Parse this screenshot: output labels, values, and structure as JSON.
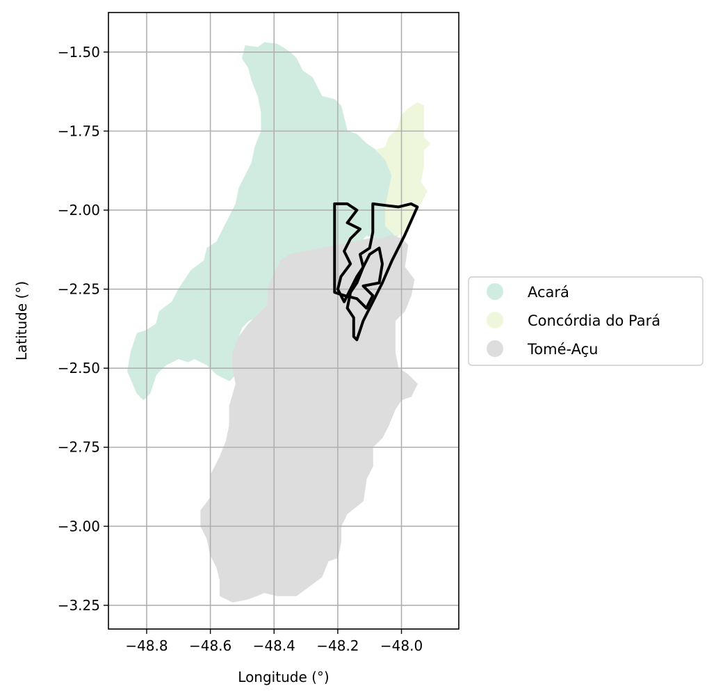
{
  "chart_data": {
    "type": "map",
    "title": "",
    "xlabel": "Longitude (°)",
    "ylabel": "Latitude (°)",
    "xlim": [
      -48.92,
      -47.82
    ],
    "ylim": [
      -3.325,
      -1.375
    ],
    "grid": true,
    "legend_position": "outside-right",
    "x_ticks": [
      {
        "value": -48.8,
        "label": "−48.8"
      },
      {
        "value": -48.6,
        "label": "−48.6"
      },
      {
        "value": -48.4,
        "label": "−48.4"
      },
      {
        "value": -48.2,
        "label": "−48.2"
      },
      {
        "value": -48.0,
        "label": "−48.0"
      }
    ],
    "y_ticks": [
      {
        "value": -1.5,
        "label": "−1.50"
      },
      {
        "value": -1.75,
        "label": "−1.75"
      },
      {
        "value": -2.0,
        "label": "−2.00"
      },
      {
        "value": -2.25,
        "label": "−2.25"
      },
      {
        "value": -2.5,
        "label": "−2.50"
      },
      {
        "value": -2.75,
        "label": "−2.75"
      },
      {
        "value": -3.0,
        "label": "−3.00"
      },
      {
        "value": -3.25,
        "label": "−3.25"
      }
    ],
    "regions": [
      {
        "name": "Acará",
        "color": "#d0ece0",
        "polygon": [
          [
            -48.49,
            -1.48
          ],
          [
            -48.45,
            -1.485
          ],
          [
            -48.43,
            -1.47
          ],
          [
            -48.39,
            -1.475
          ],
          [
            -48.35,
            -1.5
          ],
          [
            -48.33,
            -1.52
          ],
          [
            -48.31,
            -1.56
          ],
          [
            -48.28,
            -1.58
          ],
          [
            -48.27,
            -1.6
          ],
          [
            -48.25,
            -1.64
          ],
          [
            -48.21,
            -1.65
          ],
          [
            -48.19,
            -1.67
          ],
          [
            -48.18,
            -1.71
          ],
          [
            -48.17,
            -1.75
          ],
          [
            -48.14,
            -1.76
          ],
          [
            -48.11,
            -1.79
          ],
          [
            -48.08,
            -1.81
          ],
          [
            -48.06,
            -1.83
          ],
          [
            -48.04,
            -1.86
          ],
          [
            -48.03,
            -1.9
          ],
          [
            -48.02,
            -1.94
          ],
          [
            -48.05,
            -1.99
          ],
          [
            -48.04,
            -2.04
          ],
          [
            -48.01,
            -2.08
          ],
          [
            -48.05,
            -2.1
          ],
          [
            -48.08,
            -2.09
          ],
          [
            -48.11,
            -2.08
          ],
          [
            -48.13,
            -2.1
          ],
          [
            -48.15,
            -2.14
          ],
          [
            -48.18,
            -2.16
          ],
          [
            -48.19,
            -2.21
          ],
          [
            -48.22,
            -2.24
          ],
          [
            -48.25,
            -2.27
          ],
          [
            -48.26,
            -2.24
          ],
          [
            -48.29,
            -2.23
          ],
          [
            -48.31,
            -2.2
          ],
          [
            -48.34,
            -2.19
          ],
          [
            -48.36,
            -2.21
          ],
          [
            -48.37,
            -2.25
          ],
          [
            -48.4,
            -2.27
          ],
          [
            -48.42,
            -2.3
          ],
          [
            -48.44,
            -2.33
          ],
          [
            -48.48,
            -2.35
          ],
          [
            -48.5,
            -2.37
          ],
          [
            -48.52,
            -2.42
          ],
          [
            -48.53,
            -2.47
          ],
          [
            -48.52,
            -2.52
          ],
          [
            -48.54,
            -2.54
          ],
          [
            -48.58,
            -2.52
          ],
          [
            -48.61,
            -2.49
          ],
          [
            -48.65,
            -2.47
          ],
          [
            -48.67,
            -2.48
          ],
          [
            -48.7,
            -2.47
          ],
          [
            -48.74,
            -2.49
          ],
          [
            -48.77,
            -2.52
          ],
          [
            -48.79,
            -2.58
          ],
          [
            -48.81,
            -2.6
          ],
          [
            -48.83,
            -2.58
          ],
          [
            -48.86,
            -2.51
          ],
          [
            -48.85,
            -2.45
          ],
          [
            -48.83,
            -2.39
          ],
          [
            -48.8,
            -2.38
          ],
          [
            -48.77,
            -2.36
          ],
          [
            -48.76,
            -2.32
          ],
          [
            -48.72,
            -2.29
          ],
          [
            -48.7,
            -2.25
          ],
          [
            -48.68,
            -2.22
          ],
          [
            -48.66,
            -2.19
          ],
          [
            -48.62,
            -2.16
          ],
          [
            -48.61,
            -2.12
          ],
          [
            -48.58,
            -2.1
          ],
          [
            -48.56,
            -2.06
          ],
          [
            -48.54,
            -2.02
          ],
          [
            -48.52,
            -1.98
          ],
          [
            -48.51,
            -1.93
          ],
          [
            -48.49,
            -1.89
          ],
          [
            -48.47,
            -1.85
          ],
          [
            -48.46,
            -1.8
          ],
          [
            -48.44,
            -1.75
          ],
          [
            -48.44,
            -1.69
          ],
          [
            -48.45,
            -1.64
          ],
          [
            -48.47,
            -1.59
          ],
          [
            -48.48,
            -1.55
          ],
          [
            -48.5,
            -1.52
          ]
        ]
      },
      {
        "name": "Concórdia do Pará",
        "color": "#eef7dc",
        "polygon": [
          [
            -47.98,
            -1.68
          ],
          [
            -47.95,
            -1.66
          ],
          [
            -47.93,
            -1.67
          ],
          [
            -47.93,
            -1.72
          ],
          [
            -47.93,
            -1.77
          ],
          [
            -47.91,
            -1.79
          ],
          [
            -47.93,
            -1.81
          ],
          [
            -47.93,
            -1.86
          ],
          [
            -47.94,
            -1.91
          ],
          [
            -47.92,
            -1.94
          ],
          [
            -47.94,
            -1.98
          ],
          [
            -47.97,
            -2.02
          ],
          [
            -47.98,
            -2.07
          ],
          [
            -48.02,
            -2.08
          ],
          [
            -48.05,
            -2.05
          ],
          [
            -48.05,
            -1.99
          ],
          [
            -48.04,
            -1.94
          ],
          [
            -48.03,
            -1.89
          ],
          [
            -48.05,
            -1.84
          ],
          [
            -48.08,
            -1.81
          ],
          [
            -48.05,
            -1.8
          ],
          [
            -48.04,
            -1.77
          ],
          [
            -48.01,
            -1.74
          ],
          [
            -48.0,
            -1.7
          ]
        ]
      },
      {
        "name": "Tomé-Açu",
        "color": "#dddddd",
        "polygon": [
          [
            -48.03,
            -2.08
          ],
          [
            -48.0,
            -2.09
          ],
          [
            -47.98,
            -2.11
          ],
          [
            -47.99,
            -2.18
          ],
          [
            -47.96,
            -2.22
          ],
          [
            -47.97,
            -2.27
          ],
          [
            -47.99,
            -2.32
          ],
          [
            -48.02,
            -2.35
          ],
          [
            -48.02,
            -2.4
          ],
          [
            -48.02,
            -2.45
          ],
          [
            -48.01,
            -2.5
          ],
          [
            -47.98,
            -2.52
          ],
          [
            -47.95,
            -2.55
          ],
          [
            -47.97,
            -2.59
          ],
          [
            -48.0,
            -2.6
          ],
          [
            -48.02,
            -2.63
          ],
          [
            -48.04,
            -2.68
          ],
          [
            -48.06,
            -2.72
          ],
          [
            -48.09,
            -2.75
          ],
          [
            -48.09,
            -2.81
          ],
          [
            -48.11,
            -2.85
          ],
          [
            -48.12,
            -2.92
          ],
          [
            -48.17,
            -2.96
          ],
          [
            -48.19,
            -3.0
          ],
          [
            -48.19,
            -3.05
          ],
          [
            -48.2,
            -3.1
          ],
          [
            -48.23,
            -3.11
          ],
          [
            -48.25,
            -3.16
          ],
          [
            -48.29,
            -3.19
          ],
          [
            -48.33,
            -3.22
          ],
          [
            -48.39,
            -3.22
          ],
          [
            -48.43,
            -3.21
          ],
          [
            -48.48,
            -3.23
          ],
          [
            -48.53,
            -3.24
          ],
          [
            -48.57,
            -3.22
          ],
          [
            -48.57,
            -3.17
          ],
          [
            -48.58,
            -3.13
          ],
          [
            -48.6,
            -3.09
          ],
          [
            -48.61,
            -3.04
          ],
          [
            -48.63,
            -3.0
          ],
          [
            -48.63,
            -2.95
          ],
          [
            -48.6,
            -2.91
          ],
          [
            -48.6,
            -2.84
          ],
          [
            -48.57,
            -2.78
          ],
          [
            -48.55,
            -2.73
          ],
          [
            -48.54,
            -2.68
          ],
          [
            -48.54,
            -2.62
          ],
          [
            -48.52,
            -2.55
          ],
          [
            -48.53,
            -2.5
          ],
          [
            -48.53,
            -2.45
          ],
          [
            -48.51,
            -2.4
          ],
          [
            -48.48,
            -2.36
          ],
          [
            -48.45,
            -2.33
          ],
          [
            -48.42,
            -2.3
          ],
          [
            -48.42,
            -2.25
          ],
          [
            -48.4,
            -2.2
          ],
          [
            -48.38,
            -2.16
          ],
          [
            -48.35,
            -2.14
          ],
          [
            -48.3,
            -2.13
          ],
          [
            -48.25,
            -2.12
          ],
          [
            -48.2,
            -2.11
          ],
          [
            -48.15,
            -2.1
          ],
          [
            -48.1,
            -2.09
          ],
          [
            -48.06,
            -2.09
          ]
        ]
      }
    ],
    "outlines": [
      {
        "name": "outlined-area-east",
        "color": "#000000",
        "polygon": [
          [
            -48.09,
            -1.98
          ],
          [
            -48.05,
            -1.985
          ],
          [
            -48.01,
            -1.99
          ],
          [
            -47.97,
            -1.98
          ],
          [
            -47.95,
            -1.99
          ],
          [
            -47.99,
            -2.08
          ],
          [
            -48.03,
            -2.16
          ],
          [
            -48.06,
            -2.23
          ],
          [
            -48.09,
            -2.29
          ],
          [
            -48.12,
            -2.35
          ],
          [
            -48.14,
            -2.41
          ],
          [
            -48.15,
            -2.4
          ],
          [
            -48.15,
            -2.34
          ],
          [
            -48.17,
            -2.31
          ],
          [
            -48.16,
            -2.26
          ],
          [
            -48.14,
            -2.23
          ],
          [
            -48.12,
            -2.18
          ],
          [
            -48.13,
            -2.14
          ],
          [
            -48.1,
            -2.12
          ],
          [
            -48.09,
            -2.07
          ],
          [
            -48.09,
            -2.02
          ]
        ]
      },
      {
        "name": "outlined-area-west",
        "color": "#000000",
        "polygon": [
          [
            -48.21,
            -1.98
          ],
          [
            -48.17,
            -1.98
          ],
          [
            -48.14,
            -2.0
          ],
          [
            -48.17,
            -2.04
          ],
          [
            -48.13,
            -2.06
          ],
          [
            -48.16,
            -2.09
          ],
          [
            -48.18,
            -2.13
          ],
          [
            -48.16,
            -2.17
          ],
          [
            -48.19,
            -2.21
          ],
          [
            -48.2,
            -2.25
          ],
          [
            -48.18,
            -2.29
          ],
          [
            -48.16,
            -2.25
          ],
          [
            -48.14,
            -2.21
          ],
          [
            -48.12,
            -2.18
          ],
          [
            -48.1,
            -2.14
          ],
          [
            -48.07,
            -2.12
          ],
          [
            -48.06,
            -2.17
          ],
          [
            -48.07,
            -2.23
          ],
          [
            -48.12,
            -2.24
          ],
          [
            -48.09,
            -2.27
          ],
          [
            -48.11,
            -2.31
          ],
          [
            -48.14,
            -2.28
          ],
          [
            -48.18,
            -2.27
          ],
          [
            -48.21,
            -2.26
          ]
        ]
      }
    ]
  }
}
